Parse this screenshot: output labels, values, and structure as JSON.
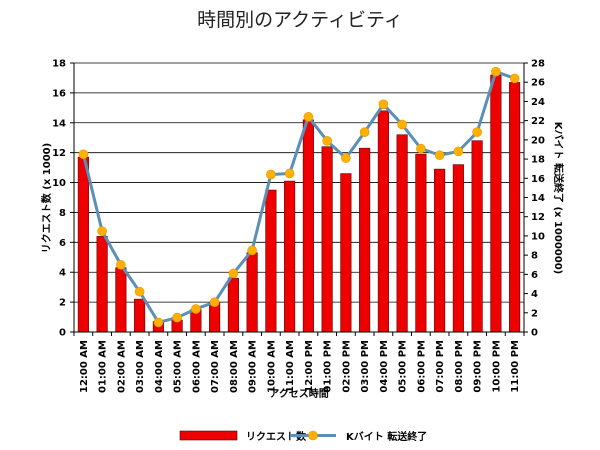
{
  "chart_data": {
    "type": "bar",
    "title": "時間別のアクティビティ",
    "xlabel": "アクセス時間",
    "ylabel_left": "リクエスト数 (x 1000)",
    "ylabel_right": "Kバイト 転送終了 (x 1000000)",
    "categories": [
      "12:00 AM",
      "01:00 AM",
      "02:00 AM",
      "03:00 AM",
      "04:00 AM",
      "05:00 AM",
      "06:00 AM",
      "07:00 AM",
      "08:00 AM",
      "09:00 AM",
      "10:00 AM",
      "11:00 AM",
      "12:00 PM",
      "01:00 PM",
      "02:00 PM",
      "03:00 PM",
      "04:00 PM",
      "05:00 PM",
      "06:00 PM",
      "07:00 PM",
      "08:00 PM",
      "09:00 PM",
      "10:00 PM",
      "11:00 PM"
    ],
    "ylim_left": [
      0,
      18
    ],
    "yticks_left": [
      0,
      2,
      4,
      6,
      8,
      10,
      12,
      14,
      16,
      18
    ],
    "ylim_right": [
      0,
      28
    ],
    "yticks_right": [
      0,
      2,
      4,
      6,
      8,
      10,
      12,
      14,
      16,
      18,
      20,
      22,
      24,
      26,
      28
    ],
    "grid": true,
    "legend_position": "bottom",
    "series": [
      {
        "name": "リクエスト数",
        "type": "bar",
        "axis": "left",
        "color": "#ee0000",
        "values": [
          11.7,
          6.4,
          4.3,
          2.2,
          0.7,
          0.8,
          1.5,
          2.0,
          3.6,
          5.3,
          9.5,
          10.1,
          14.2,
          12.4,
          10.6,
          12.3,
          14.8,
          13.2,
          11.9,
          10.9,
          11.2,
          12.8,
          17.2,
          16.7
        ]
      },
      {
        "name": "Kバイト 転送終了",
        "type": "line",
        "axis": "right",
        "color": "#5a8fb8",
        "marker_color": "#ffb000",
        "values": [
          18.5,
          10.5,
          7.0,
          4.2,
          1.0,
          1.5,
          2.4,
          3.1,
          6.1,
          8.5,
          16.4,
          16.5,
          22.4,
          19.9,
          18.1,
          20.8,
          23.7,
          21.6,
          19.1,
          18.4,
          18.8,
          20.8,
          27.1,
          26.4
        ]
      }
    ]
  },
  "colors": {
    "bar_outline": "#600000",
    "grid": "#000000"
  }
}
